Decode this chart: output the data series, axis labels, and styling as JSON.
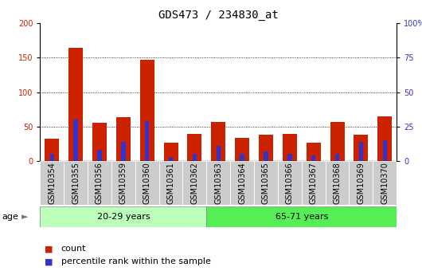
{
  "title": "GDS473 / 234830_at",
  "samples": [
    "GSM10354",
    "GSM10355",
    "GSM10356",
    "GSM10359",
    "GSM10360",
    "GSM10361",
    "GSM10362",
    "GSM10363",
    "GSM10364",
    "GSM10365",
    "GSM10366",
    "GSM10367",
    "GSM10368",
    "GSM10369",
    "GSM10370"
  ],
  "count_values": [
    32,
    165,
    56,
    63,
    147,
    27,
    39,
    57,
    33,
    38,
    39,
    26,
    57,
    38,
    65
  ],
  "percentile_values": [
    5,
    30,
    8,
    14,
    29,
    3,
    5,
    11,
    5,
    7,
    5,
    4,
    5,
    14,
    15
  ],
  "group1_label": "20-29 years",
  "group1_count": 7,
  "group2_label": "65-71 years",
  "group2_count": 8,
  "age_label": "age",
  "bar_color_red": "#cc2200",
  "bar_color_blue": "#3333cc",
  "group1_bg": "#bbffbb",
  "group2_bg": "#55ee55",
  "axis_bg": "#cccccc",
  "plot_bg": "#ffffff",
  "ylim_left": [
    0,
    200
  ],
  "ylim_right": [
    0,
    100
  ],
  "yticks_left": [
    0,
    50,
    100,
    150,
    200
  ],
  "yticks_right": [
    0,
    25,
    50,
    75,
    100
  ],
  "legend_count": "count",
  "legend_pct": "percentile rank within the sample",
  "title_fontsize": 10,
  "tick_fontsize": 7,
  "label_fontsize": 8,
  "grid_lines": [
    50,
    100,
    150
  ]
}
